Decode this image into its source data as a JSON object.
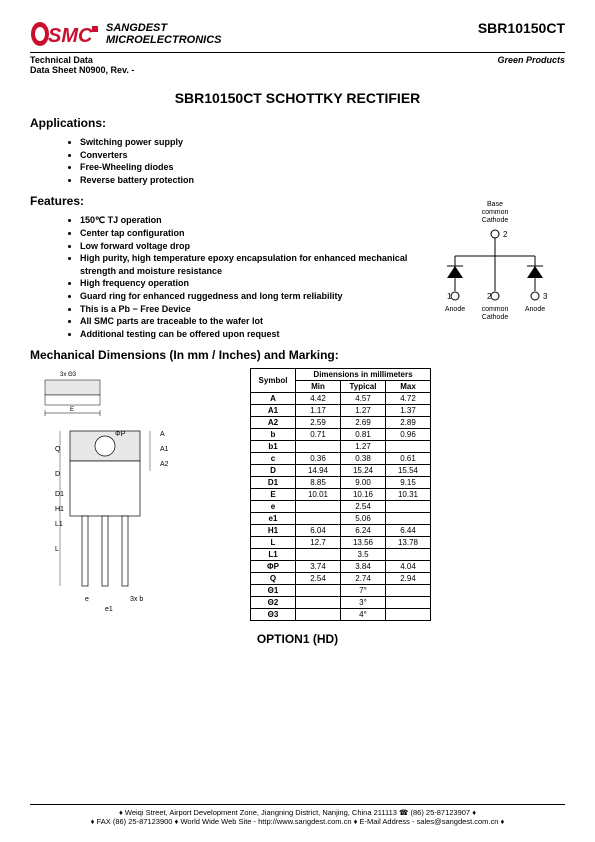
{
  "header": {
    "company_line1": "SANGDEST",
    "company_line2": "MICROELECTRONICS",
    "part_number": "SBR10150CT",
    "tech_data": "Technical Data",
    "datasheet": "Data Sheet N0900, Rev. -",
    "green": "Green Products"
  },
  "title": "SBR10150CT SCHOTTKY RECTIFIER",
  "applications": {
    "heading": "Applications:",
    "items": [
      "Switching power supply",
      "Converters",
      "Free-Wheeling diodes",
      "Reverse battery protection"
    ]
  },
  "features": {
    "heading": "Features:",
    "items": [
      "150℃ TJ operation",
      "Center tap configuration",
      "Low forward voltage drop",
      "High purity, high temperature epoxy encapsulation for enhanced mechanical strength and moisture resistance",
      "High frequency operation",
      "Guard ring for enhanced ruggedness and long term reliability",
      "This is a Pb − Free Device",
      "All SMC parts are traceable to the wafer lot",
      "Additional testing can be offered upon request"
    ]
  },
  "circuit": {
    "label_top": "Base common Cathode",
    "pin1": "Anode",
    "pin1_num": "1",
    "pin2": "common Cathode",
    "pin2_num": "2",
    "pin3": "Anode",
    "pin3_num": "3"
  },
  "mech_heading": "Mechanical Dimensions (In mm / Inches) and Marking:",
  "table": {
    "h_symbol": "Symbol",
    "h_dims": "Dimensions in millimeters",
    "h_min": "Min",
    "h_typ": "Typical",
    "h_max": "Max",
    "rows": [
      {
        "s": "A",
        "min": "4.42",
        "typ": "4.57",
        "max": "4.72"
      },
      {
        "s": "A1",
        "min": "1.17",
        "typ": "1.27",
        "max": "1.37"
      },
      {
        "s": "A2",
        "min": "2.59",
        "typ": "2.69",
        "max": "2.89"
      },
      {
        "s": "b",
        "min": "0.71",
        "typ": "0.81",
        "max": "0.96"
      },
      {
        "s": "b1",
        "min": "",
        "typ": "1.27",
        "max": ""
      },
      {
        "s": "c",
        "min": "0.36",
        "typ": "0.38",
        "max": "0.61"
      },
      {
        "s": "D",
        "min": "14.94",
        "typ": "15.24",
        "max": "15.54"
      },
      {
        "s": "D1",
        "min": "8.85",
        "typ": "9.00",
        "max": "9.15"
      },
      {
        "s": "E",
        "min": "10.01",
        "typ": "10.16",
        "max": "10.31"
      },
      {
        "s": "e",
        "min": "",
        "typ": "2.54",
        "max": ""
      },
      {
        "s": "e1",
        "min": "",
        "typ": "5.06",
        "max": ""
      },
      {
        "s": "H1",
        "min": "6.04",
        "typ": "6.24",
        "max": "6.44"
      },
      {
        "s": "L",
        "min": "12.7",
        "typ": "13.56",
        "max": "13.78"
      },
      {
        "s": "L1",
        "min": "",
        "typ": "3.5",
        "max": ""
      },
      {
        "s": "ΦP",
        "min": "3.74",
        "typ": "3.84",
        "max": "4.04"
      },
      {
        "s": "Q",
        "min": "2.54",
        "typ": "2.74",
        "max": "2.94"
      },
      {
        "s": "Θ1",
        "min": "",
        "typ": "7°",
        "max": ""
      },
      {
        "s": "Θ2",
        "min": "",
        "typ": "3°",
        "max": ""
      },
      {
        "s": "Θ3",
        "min": "",
        "typ": "4°",
        "max": ""
      }
    ]
  },
  "option": "OPTION1 (HD)",
  "footer": {
    "line1": "♦ Weiqi Street, Airport Development Zone, Jiangning District, Nanjing, China 211113  ☎ (86) 25-87123907 ♦",
    "line2": "♦ FAX (86) 25-87123900 ♦ World Wide Web Site - http://www.sangdest.com.cn ♦ E-Mail Address - sales@sangdest.com.cn ♦"
  },
  "colors": {
    "logo_red": "#c8102e",
    "text": "#000000"
  }
}
